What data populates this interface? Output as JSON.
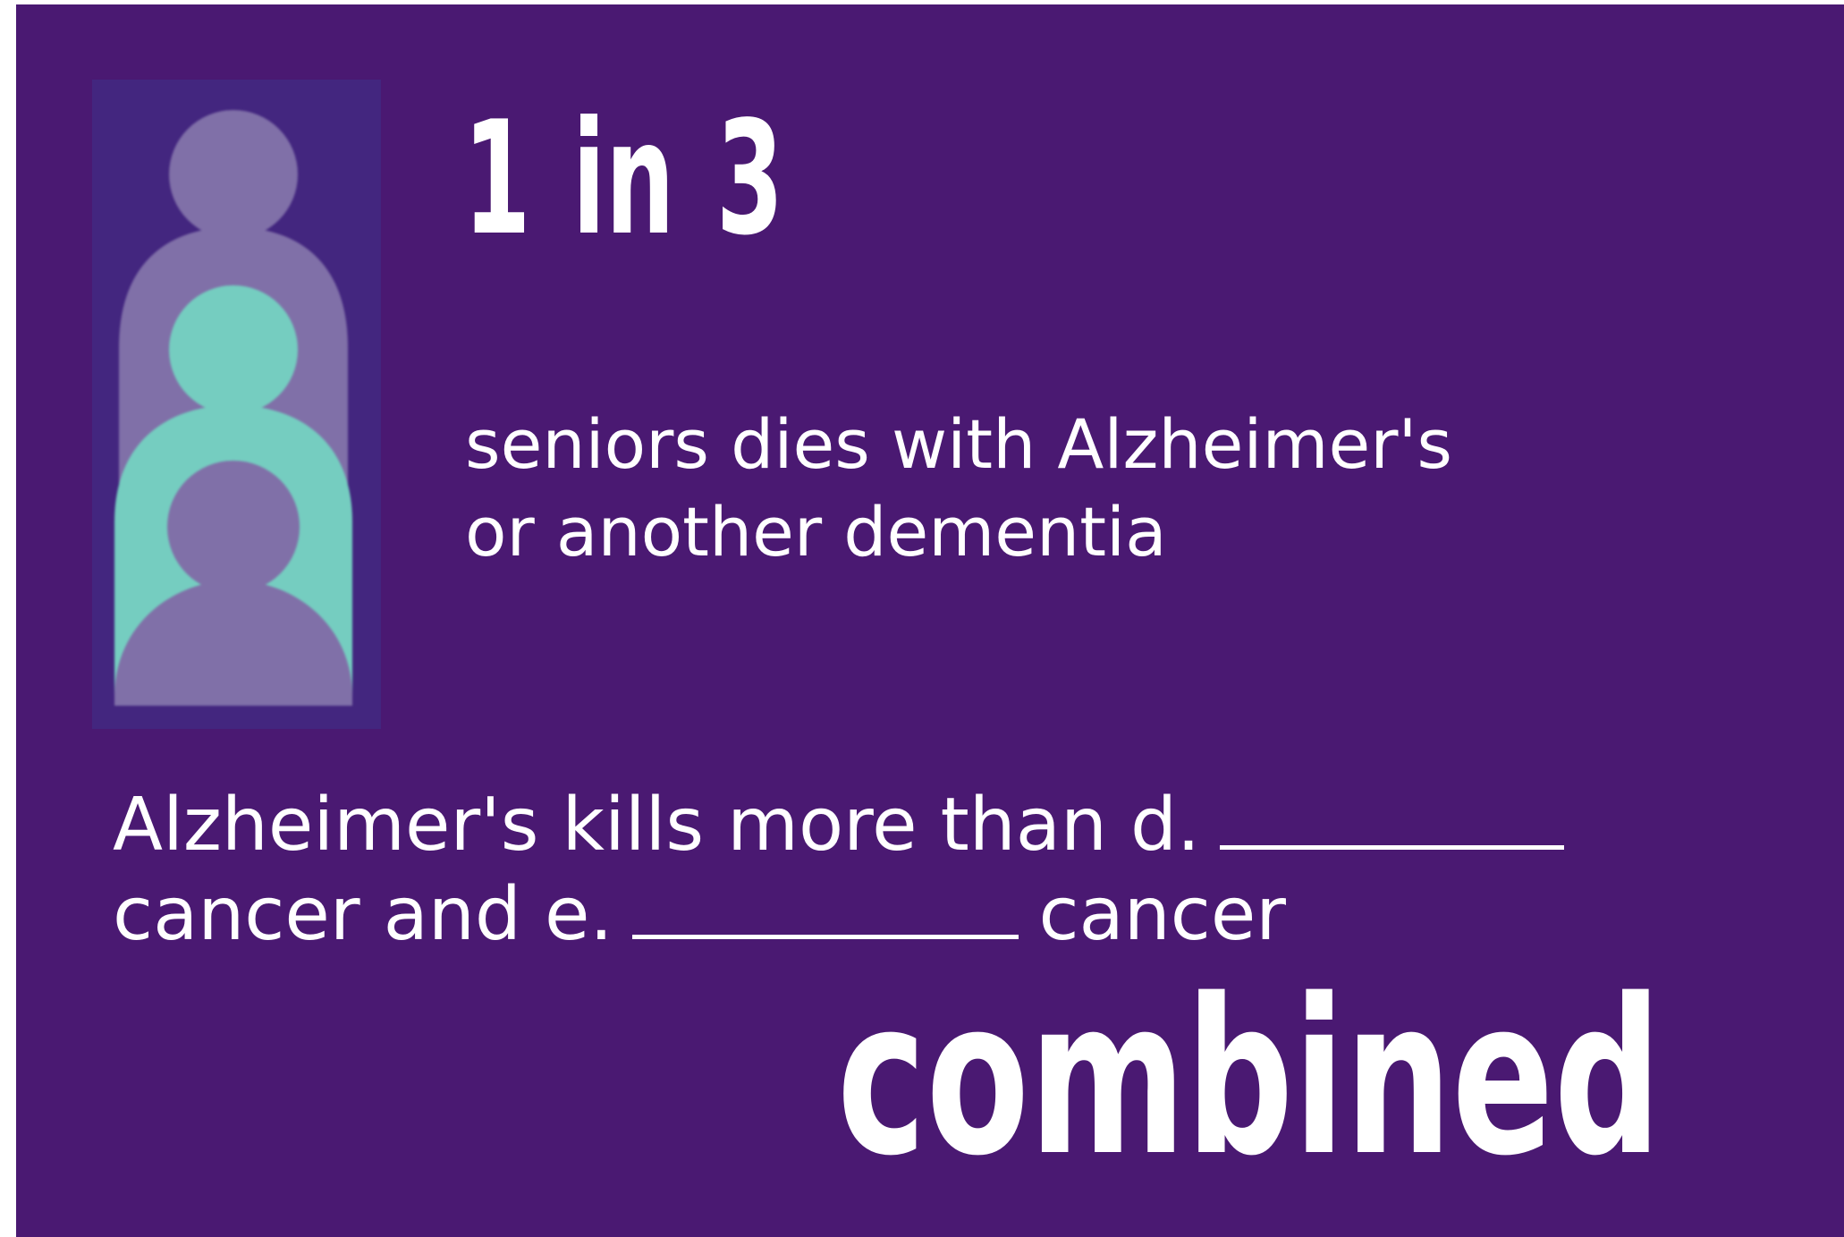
{
  "stat": {
    "headline": "1 in 3",
    "subtitle_line1": "seniors dies with Alzheimer's",
    "subtitle_line2": "or another dementia"
  },
  "statement": {
    "line1_text": "Alzheimer's kills more than d.",
    "line2_before": "cancer and e.",
    "line2_after": "cancer",
    "emphasis": "combined"
  },
  "icon": {
    "name": "three-people-icon",
    "highlighted_figure": "middle"
  },
  "colors": {
    "background": "#4a1972",
    "icon_box": "#43267f",
    "figure_muted": "#8070a8",
    "figure_highlight": "#75cdc0",
    "text": "#ffffff"
  }
}
